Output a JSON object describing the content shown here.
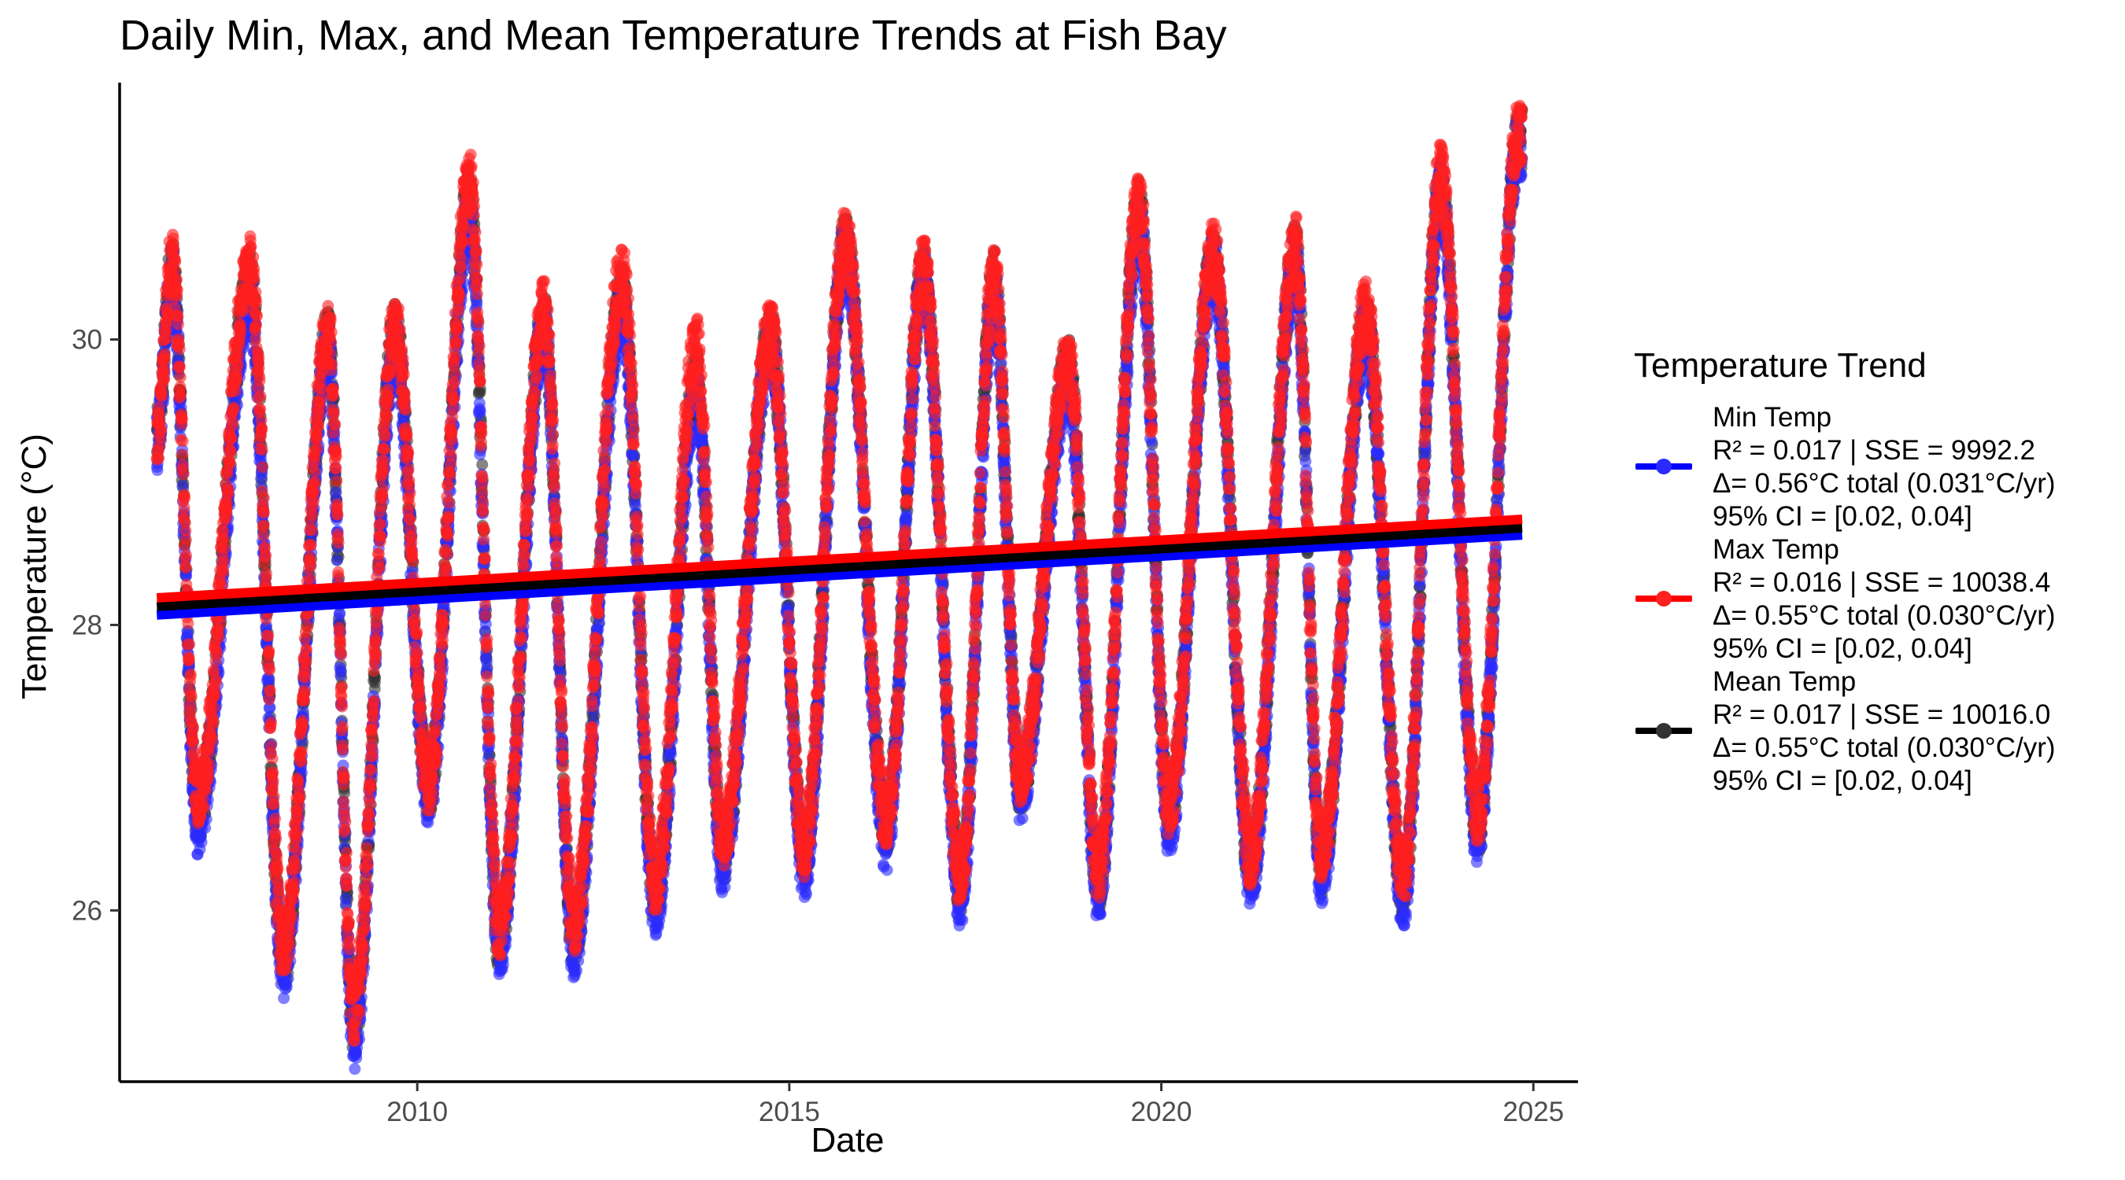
{
  "chart_data": {
    "type": "scatter",
    "title": "Daily Min, Max, and Mean Temperature Trends at Fish Bay",
    "xlabel": "Date",
    "ylabel": "Temperature (°C)",
    "xlim": [
      2006.0,
      2025.6
    ],
    "ylim": [
      24.8,
      31.8
    ],
    "x_ticks": [
      2010,
      2015,
      2020,
      2025
    ],
    "x_tick_labels": [
      "2010",
      "2015",
      "2020",
      "2025"
    ],
    "y_ticks": [
      26,
      28,
      30
    ],
    "y_tick_labels": [
      "26",
      "28",
      "30"
    ],
    "grid": false,
    "legend_position": "right",
    "legend_title": "Temperature Trend",
    "x_range": [
      2006.5,
      2024.85
    ],
    "series": [
      {
        "name": "Min Temp",
        "color": "#0000ff",
        "point_color": "#2b2bff",
        "legend_lines": [
          "Min Temp",
          "R² = 0.017 | SSE = 9992.2",
          "Δ= 0.56°C total (0.031°C/yr)",
          "95% CI = [0.02, 0.04]"
        ],
        "trend": {
          "x": [
            2006.5,
            2024.85
          ],
          "y": [
            28.07,
            28.63
          ]
        },
        "seasonal_peaks": [
          [
            2006.7,
            30.45
          ],
          [
            2007.75,
            30.25
          ],
          [
            2008.8,
            29.9
          ],
          [
            2009.7,
            29.95
          ],
          [
            2010.7,
            30.85
          ],
          [
            2011.7,
            30.05
          ],
          [
            2012.75,
            30.2
          ],
          [
            2013.75,
            29.6
          ],
          [
            2014.75,
            29.95
          ],
          [
            2015.75,
            30.6
          ],
          [
            2016.8,
            30.4
          ],
          [
            2017.75,
            30.3
          ],
          [
            2018.75,
            29.7
          ],
          [
            2019.7,
            30.8
          ],
          [
            2020.7,
            30.5
          ],
          [
            2021.8,
            30.5
          ],
          [
            2022.75,
            30.05
          ],
          [
            2023.75,
            31.0
          ],
          [
            2024.8,
            31.35
          ]
        ],
        "seasonal_troughs": [
          [
            2007.05,
            26.6
          ],
          [
            2008.2,
            25.6
          ],
          [
            2009.15,
            25.1
          ],
          [
            2010.15,
            26.8
          ],
          [
            2011.1,
            25.75
          ],
          [
            2012.1,
            25.75
          ],
          [
            2013.2,
            26.05
          ],
          [
            2014.1,
            26.35
          ],
          [
            2015.2,
            26.3
          ],
          [
            2016.3,
            26.5
          ],
          [
            2017.3,
            26.1
          ],
          [
            2018.1,
            26.85
          ],
          [
            2019.15,
            26.15
          ],
          [
            2020.1,
            26.6
          ],
          [
            2021.2,
            26.25
          ],
          [
            2022.15,
            26.25
          ],
          [
            2023.25,
            26.1
          ],
          [
            2024.25,
            26.55
          ]
        ]
      },
      {
        "name": "Max Temp",
        "color": "#ff0000",
        "point_color": "#ff2020",
        "legend_lines": [
          "Max Temp",
          "R² = 0.016 | SSE = 10038.4",
          "Δ= 0.55°C total (0.030°C/yr)",
          "95% CI = [0.02, 0.04]"
        ],
        "trend": {
          "x": [
            2006.5,
            2024.85
          ],
          "y": [
            28.19,
            28.74
          ]
        },
        "seasonal_peaks": [
          [
            2006.7,
            30.55
          ],
          [
            2007.75,
            30.5
          ],
          [
            2008.8,
            30.05
          ],
          [
            2009.7,
            30.1
          ],
          [
            2010.7,
            31.1
          ],
          [
            2011.7,
            30.2
          ],
          [
            2012.75,
            30.45
          ],
          [
            2013.75,
            29.95
          ],
          [
            2014.75,
            30.05
          ],
          [
            2015.75,
            30.7
          ],
          [
            2016.8,
            30.5
          ],
          [
            2017.75,
            30.45
          ],
          [
            2018.75,
            29.85
          ],
          [
            2019.7,
            30.95
          ],
          [
            2020.7,
            30.6
          ],
          [
            2021.8,
            30.65
          ],
          [
            2022.75,
            30.2
          ],
          [
            2023.75,
            31.15
          ],
          [
            2024.8,
            31.45
          ]
        ],
        "seasonal_troughs": [
          [
            2007.05,
            26.8
          ],
          [
            2008.2,
            25.75
          ],
          [
            2009.15,
            25.3
          ],
          [
            2010.15,
            26.9
          ],
          [
            2011.1,
            25.9
          ],
          [
            2012.1,
            25.9
          ],
          [
            2013.2,
            26.2
          ],
          [
            2014.1,
            26.5
          ],
          [
            2015.2,
            26.45
          ],
          [
            2016.3,
            26.65
          ],
          [
            2017.3,
            26.25
          ],
          [
            2018.1,
            26.95
          ],
          [
            2019.15,
            26.3
          ],
          [
            2020.1,
            26.75
          ],
          [
            2021.2,
            26.4
          ],
          [
            2022.15,
            26.4
          ],
          [
            2023.25,
            26.25
          ],
          [
            2024.25,
            26.7
          ]
        ]
      },
      {
        "name": "Mean Temp",
        "color": "#000000",
        "point_color": "#333333",
        "legend_lines": [
          "Mean Temp",
          "R² = 0.017 | SSE = 10016.0",
          "Δ= 0.55°C total (0.030°C/yr)",
          "95% CI = [0.02, 0.04]"
        ],
        "trend": {
          "x": [
            2006.5,
            2024.85
          ],
          "y": [
            28.13,
            28.68
          ]
        },
        "seasonal_peaks": [
          [
            2006.7,
            30.5
          ],
          [
            2007.75,
            30.4
          ],
          [
            2008.8,
            30.0
          ],
          [
            2009.7,
            30.05
          ],
          [
            2010.7,
            31.0
          ],
          [
            2011.7,
            30.1
          ],
          [
            2012.75,
            30.3
          ],
          [
            2013.75,
            29.7
          ],
          [
            2014.75,
            30.0
          ],
          [
            2015.75,
            30.65
          ],
          [
            2016.8,
            30.45
          ],
          [
            2017.75,
            30.4
          ],
          [
            2018.75,
            29.8
          ],
          [
            2019.7,
            30.9
          ],
          [
            2020.7,
            30.55
          ],
          [
            2021.8,
            30.6
          ],
          [
            2022.75,
            30.1
          ],
          [
            2023.75,
            31.05
          ],
          [
            2024.8,
            31.4
          ]
        ],
        "seasonal_troughs": [
          [
            2007.05,
            26.7
          ],
          [
            2008.2,
            25.65
          ],
          [
            2009.15,
            25.2
          ],
          [
            2010.15,
            26.85
          ],
          [
            2011.1,
            25.8
          ],
          [
            2012.1,
            25.8
          ],
          [
            2013.2,
            26.1
          ],
          [
            2014.1,
            26.4
          ],
          [
            2015.2,
            26.4
          ],
          [
            2016.3,
            26.6
          ],
          [
            2017.3,
            26.2
          ],
          [
            2018.1,
            26.9
          ],
          [
            2019.15,
            26.2
          ],
          [
            2020.1,
            26.7
          ],
          [
            2021.2,
            26.3
          ],
          [
            2022.15,
            26.3
          ],
          [
            2023.25,
            26.15
          ],
          [
            2024.25,
            26.6
          ]
        ]
      }
    ]
  }
}
